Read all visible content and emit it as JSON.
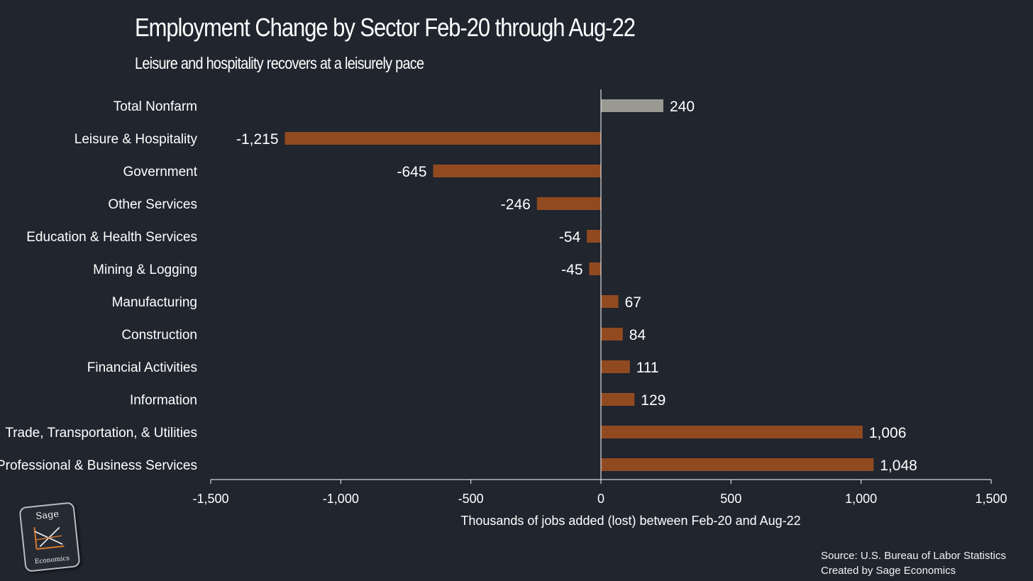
{
  "header": {
    "title": "Employment Change by Sector Feb-20 through Aug-22",
    "subtitle": "Leisure and hospitality recovers at a leisurely pace"
  },
  "footer": {
    "source_line": "Source: U.S. Bureau of Labor Statistics",
    "created_line": "Created by Sage Economics"
  },
  "logo": {
    "top_text": "Sage",
    "bottom_text": "Economics",
    "icon": "chart-lines-icon"
  },
  "colors": {
    "background": "#20252e",
    "bar": "#914a20",
    "total_bar": "#9a9a92",
    "text": "#ffffff",
    "axis": "#ffffff"
  },
  "chart_data": {
    "type": "bar",
    "orientation": "horizontal",
    "title": "Employment Change by Sector Feb-20 through Aug-22",
    "subtitle": "Leisure and hospitality recovers at a leisurely pace",
    "xlabel": "Thousands of jobs added (lost) between Feb-20 and Aug-22",
    "ylabel": "",
    "xlim": [
      -1500,
      1500
    ],
    "xticks": [
      -1500,
      -1000,
      -500,
      0,
      500,
      1000,
      1500
    ],
    "xtick_labels": [
      "-1,500",
      "-1,000",
      "-500",
      "0",
      "500",
      "1,000",
      "1,500"
    ],
    "grid": false,
    "legend": "none",
    "categories": [
      "Total Nonfarm",
      "Leisure & Hospitality",
      "Government",
      "Other Services",
      "Education & Health Services",
      "Mining & Logging",
      "Manufacturing",
      "Construction",
      "Financial Activities",
      "Information",
      "Trade, Transportation, & Utilities",
      "Professional & Business Services"
    ],
    "values": [
      240,
      -1215,
      -645,
      -246,
      -54,
      -45,
      67,
      84,
      111,
      129,
      1006,
      1048
    ],
    "value_labels": [
      "240",
      "-1,215",
      "-645",
      "-246",
      "-54",
      "-45",
      "67",
      "84",
      "111",
      "129",
      "1,006",
      "1,048"
    ],
    "highlight_category": "Total Nonfarm"
  }
}
